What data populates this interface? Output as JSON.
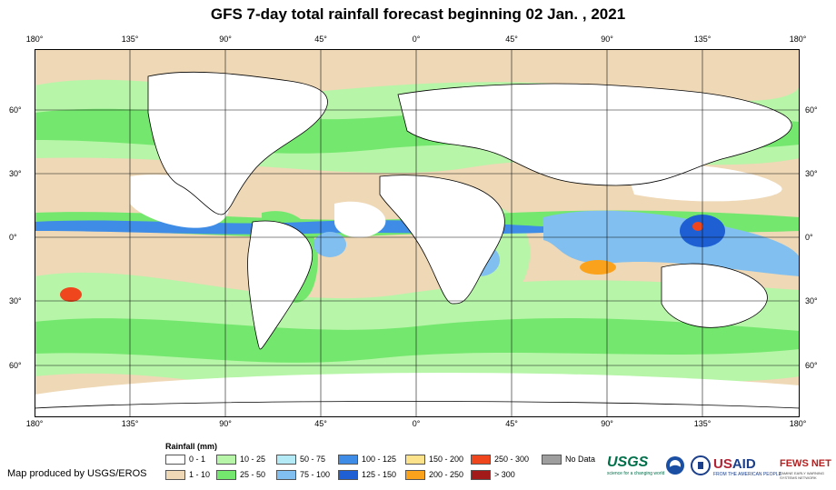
{
  "title": "GFS 7-day total rainfall forecast beginning 02 Jan. , 2021",
  "longitude_labels": [
    "180°",
    "135°",
    "90°",
    "45°",
    "0°",
    "45°",
    "90°",
    "135°",
    "180°"
  ],
  "latitude_labels": [
    "60°",
    "30°",
    "0°",
    "30°",
    "60°"
  ],
  "legend": {
    "title": "Rainfall (mm)",
    "items": [
      {
        "label": "0 - 1",
        "color": "#ffffff"
      },
      {
        "label": "1 - 10",
        "color": "#eed8b6"
      },
      {
        "label": "10 - 25",
        "color": "#b7f5a8"
      },
      {
        "label": "25 - 50",
        "color": "#74e86e"
      },
      {
        "label": "50 - 75",
        "color": "#b3eaf6"
      },
      {
        "label": "75 - 100",
        "color": "#80bff0"
      },
      {
        "label": "100 - 125",
        "color": "#3f8ce6"
      },
      {
        "label": "125 - 150",
        "color": "#1e5fd4"
      },
      {
        "label": "150 - 200",
        "color": "#fce28a"
      },
      {
        "label": "200 - 250",
        "color": "#fba21c"
      },
      {
        "label": "250 - 300",
        "color": "#f0461e"
      },
      {
        "label": "> 300",
        "color": "#a31a1a"
      },
      {
        "label": "No Data",
        "color": "#9e9e9e"
      }
    ]
  },
  "credit": "Map produced by USGS/EROS",
  "logos": {
    "usgs": "USGS",
    "usgs_tagline": "science for a changing world",
    "usaid_prefix": "US",
    "usaid_suffix": "AID",
    "usaid_tagline": "FROM THE AMERICAN PEOPLE",
    "fews": "FEWS NET",
    "fews_tagline": "FAMINE EARLY WARNING SYSTEMS NETWORK"
  },
  "colors": {
    "ocean_dry": "#ffffff",
    "land_fill": "#ffffff",
    "coast": "#000000",
    "grid": "#111111"
  }
}
